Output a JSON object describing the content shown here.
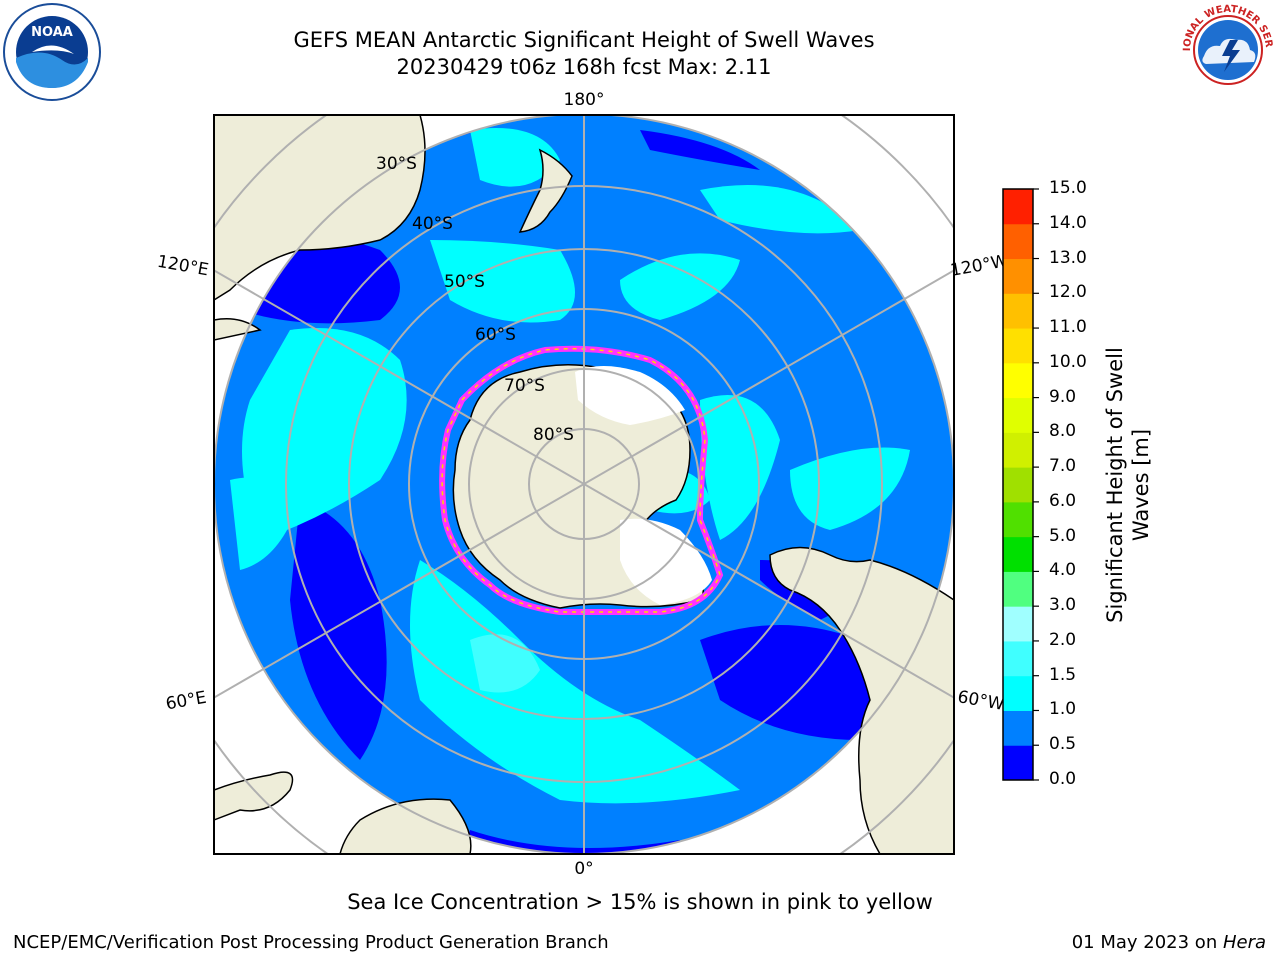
{
  "header": {
    "title_line1": "GEFS MEAN Antarctic Significant Height of Swell Waves",
    "title_line2": "20230429 t06z 168h fcst   Max: 2.11"
  },
  "map": {
    "projection": "south-polar-stereographic",
    "longitude_labels": [
      "180°",
      "120°E",
      "120°W",
      "60°E",
      "60°W",
      "0°"
    ],
    "latitude_labels": [
      "30°S",
      "40°S",
      "50°S",
      "60°S",
      "70°S",
      "80°S"
    ],
    "field": "Significant Height of Swell Waves",
    "land_color": "#eeedd9",
    "sea_ice_color_range": [
      "#ff00ff",
      "#ffd700"
    ]
  },
  "colorbar": {
    "title": "Significant Height of Swell Waves [m]",
    "ticks": [
      "0.0",
      "0.5",
      "1.0",
      "1.5",
      "2.0",
      "3.0",
      "4.0",
      "5.0",
      "6.0",
      "7.0",
      "8.0",
      "9.0",
      "10.0",
      "11.0",
      "12.0",
      "13.0",
      "14.0",
      "15.0"
    ],
    "colors": [
      "#0000ff",
      "#0080ff",
      "#00ffff",
      "#40ffff",
      "#a0ffff",
      "#50ff80",
      "#00e000",
      "#50e000",
      "#a0e000",
      "#d0f000",
      "#e0ff00",
      "#ffff00",
      "#ffe000",
      "#ffc000",
      "#ff9000",
      "#ff6000",
      "#ff2000"
    ]
  },
  "footer": {
    "note": "Sea Ice Concentration > 15% is shown in pink to yellow",
    "credit": "NCEP/EMC/Verification Post Processing Product Generation Branch",
    "date_prefix": "01 May 2023 on ",
    "date_host": "Hera"
  },
  "logos": {
    "noaa_text": "NOAA",
    "nws_text": "NATIONAL WEATHER SERVICE"
  }
}
